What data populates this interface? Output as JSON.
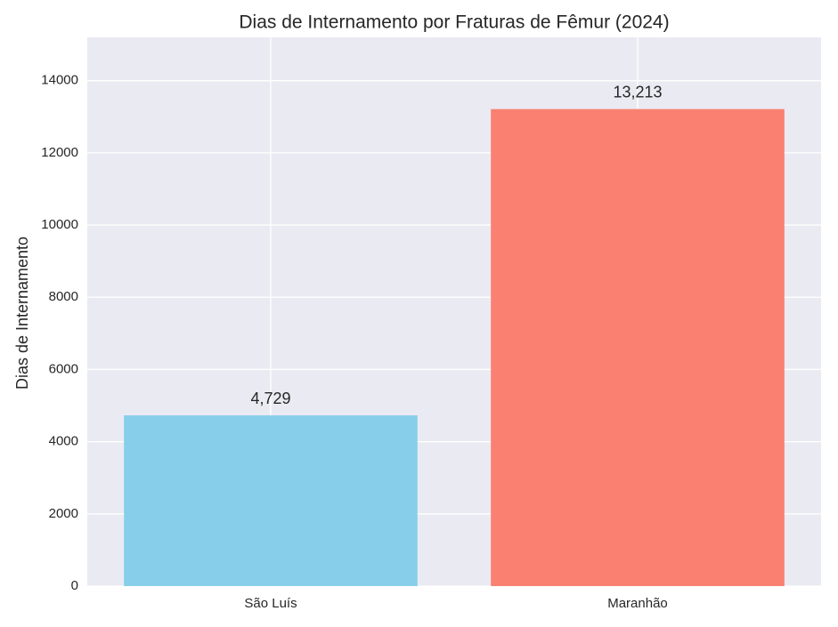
{
  "chart_data": {
    "type": "bar",
    "title": "Dias de Internamento por Fraturas de Fêmur (2024)",
    "y_label": "Dias de Internamento",
    "categories": [
      "São Luís",
      "Maranhão"
    ],
    "values": [
      4729,
      13213
    ],
    "value_labels": [
      "4,729",
      "13,213"
    ],
    "colors": [
      "#87ceeb",
      "#fa8072"
    ],
    "ylim": [
      0,
      15200
    ],
    "yticks": [
      0,
      2000,
      4000,
      6000,
      8000,
      10000,
      12000,
      14000
    ],
    "grid": true
  }
}
